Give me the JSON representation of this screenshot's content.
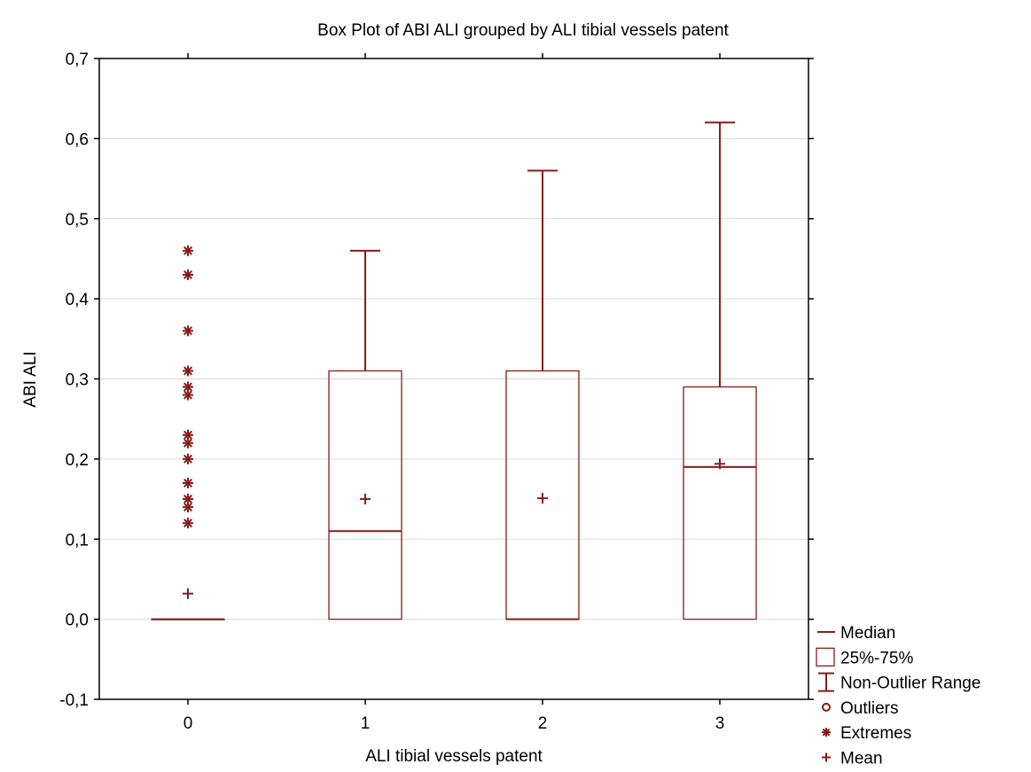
{
  "chart_data": {
    "type": "box",
    "title": "Box Plot of ABI ALI grouped by  ALI tibial vessels patent",
    "xlabel": "ALI tibial vessels patent",
    "ylabel": "ABI ALI",
    "ylim": [
      -0.1,
      0.7
    ],
    "yticks": [
      -0.1,
      0.0,
      0.1,
      0.2,
      0.3,
      0.4,
      0.5,
      0.6,
      0.7
    ],
    "ytick_labels": [
      "-0,1",
      "0,0",
      "0,1",
      "0,2",
      "0,3",
      "0,4",
      "0,5",
      "0,6",
      "0,7"
    ],
    "categories": [
      "0",
      "1",
      "2",
      "3"
    ],
    "grid": "horizontal",
    "legend_position": "bottom-right",
    "color": "#8b1a1a",
    "groups": [
      {
        "category": "0",
        "median": 0.0,
        "q1": 0.0,
        "q3": 0.0,
        "whisker_low": 0.0,
        "whisker_high": 0.0,
        "mean": 0.032,
        "extremes": [
          0.46,
          0.43,
          0.36,
          0.31,
          0.29,
          0.28,
          0.23,
          0.22,
          0.2,
          0.17,
          0.15,
          0.14,
          0.12
        ],
        "outliers": []
      },
      {
        "category": "1",
        "median": 0.11,
        "q1": 0.0,
        "q3": 0.31,
        "whisker_low": 0.0,
        "whisker_high": 0.46,
        "mean": 0.15,
        "extremes": [],
        "outliers": []
      },
      {
        "category": "2",
        "median": 0.0,
        "q1": 0.0,
        "q3": 0.31,
        "whisker_low": 0.0,
        "whisker_high": 0.56,
        "mean": 0.151,
        "extremes": [],
        "outliers": []
      },
      {
        "category": "3",
        "median": 0.19,
        "q1": 0.0,
        "q3": 0.29,
        "whisker_low": 0.0,
        "whisker_high": 0.62,
        "mean": 0.194,
        "extremes": [],
        "outliers": []
      }
    ],
    "legend": [
      {
        "symbol": "median",
        "label": "Median"
      },
      {
        "symbol": "box",
        "label": "25%-75%"
      },
      {
        "symbol": "whisker",
        "label": "Non-Outlier Range"
      },
      {
        "symbol": "outlier",
        "label": "Outliers"
      },
      {
        "symbol": "extreme",
        "label": "Extremes"
      },
      {
        "symbol": "mean",
        "label": "Mean"
      }
    ]
  }
}
